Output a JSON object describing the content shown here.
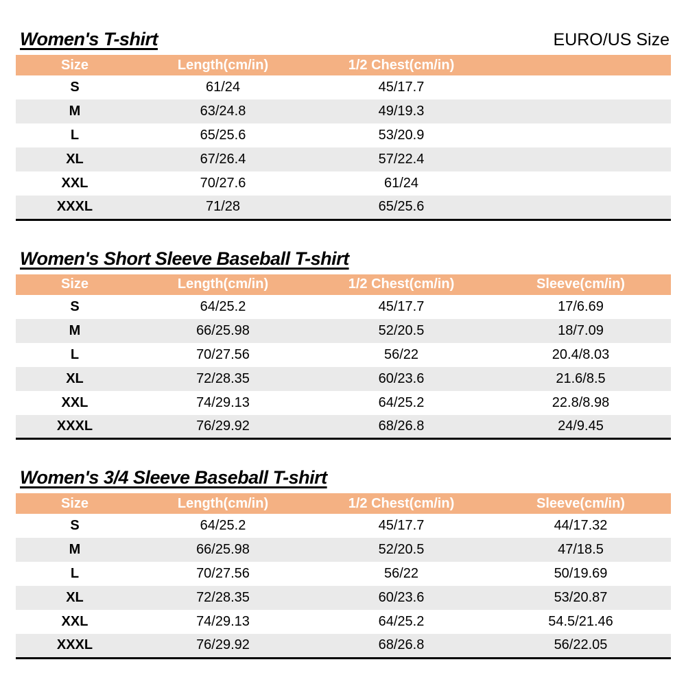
{
  "page": {
    "size_standard_label": "EURO/US Size",
    "colors": {
      "header_bg": "#F4B183",
      "header_text": "#FFFFFF",
      "row_alt_bg": "#EAEAEA",
      "table_border": "#000000"
    }
  },
  "tables": [
    {
      "title": "Women's T-shirt",
      "columns": [
        "Size",
        "Length(cm/in)",
        "1/2 Chest(cm/in)"
      ],
      "rows": [
        [
          "S",
          "61/24",
          "45/17.7"
        ],
        [
          "M",
          "63/24.8",
          "49/19.3"
        ],
        [
          "L",
          "65/25.6",
          "53/20.9"
        ],
        [
          "XL",
          "67/26.4",
          "57/22.4"
        ],
        [
          "XXL",
          "70/27.6",
          "61/24"
        ],
        [
          "XXXL",
          "71/28",
          "65/25.6"
        ]
      ]
    },
    {
      "title": "Women's Short Sleeve Baseball T-shirt",
      "columns": [
        "Size",
        "Length(cm/in)",
        "1/2 Chest(cm/in)",
        "Sleeve(cm/in)"
      ],
      "rows": [
        [
          "S",
          "64/25.2",
          "45/17.7",
          "17/6.69"
        ],
        [
          "M",
          "66/25.98",
          "52/20.5",
          "18/7.09"
        ],
        [
          "L",
          "70/27.56",
          "56/22",
          "20.4/8.03"
        ],
        [
          "XL",
          "72/28.35",
          "60/23.6",
          "21.6/8.5"
        ],
        [
          "XXL",
          "74/29.13",
          "64/25.2",
          "22.8/8.98"
        ],
        [
          "XXXL",
          "76/29.92",
          "68/26.8",
          "24/9.45"
        ]
      ]
    },
    {
      "title": "Women's 3/4 Sleeve Baseball T-shirt",
      "columns": [
        "Size",
        "Length(cm/in)",
        "1/2 Chest(cm/in)",
        "Sleeve(cm/in)"
      ],
      "rows": [
        [
          "S",
          "64/25.2",
          "45/17.7",
          "44/17.32"
        ],
        [
          "M",
          "66/25.98",
          "52/20.5",
          "47/18.5"
        ],
        [
          "L",
          "70/27.56",
          "56/22",
          "50/19.69"
        ],
        [
          "XL",
          "72/28.35",
          "60/23.6",
          "53/20.87"
        ],
        [
          "XXL",
          "74/29.13",
          "64/25.2",
          "54.5/21.46"
        ],
        [
          "XXXL",
          "76/29.92",
          "68/26.8",
          "56/22.05"
        ]
      ]
    }
  ]
}
